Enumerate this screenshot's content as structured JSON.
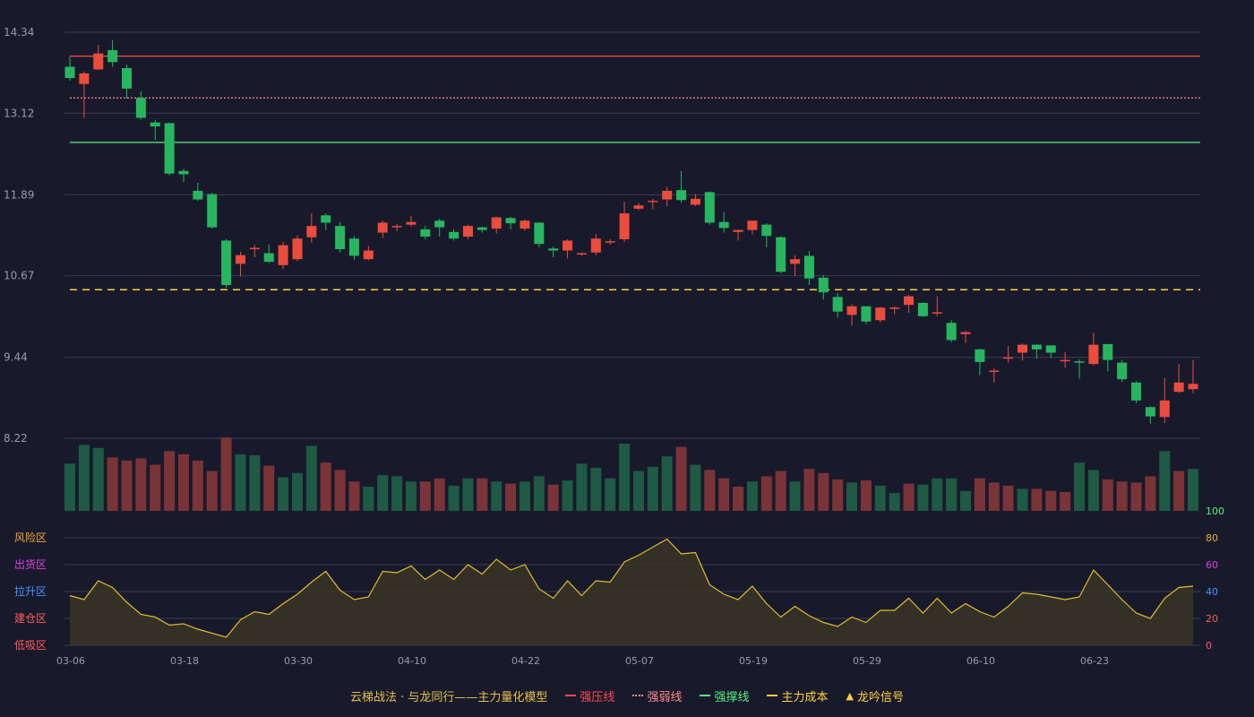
{
  "chart_data": {
    "type": "candlestick",
    "dates_shown": [
      "03-06",
      "03-18",
      "03-30",
      "04-10",
      "04-22",
      "05-07",
      "05-19",
      "05-29",
      "06-10",
      "06-23"
    ],
    "price_axis": {
      "ticks": [
        "14.34",
        "13.12",
        "11.89",
        "10.67",
        "9.44",
        "8.22"
      ],
      "range": [
        8.22,
        14.34
      ]
    },
    "candles": [
      [
        13.82,
        13.65,
        13.97,
        13.61
      ],
      [
        13.56,
        13.72,
        13.75,
        13.05
      ],
      [
        13.78,
        14.02,
        14.15,
        13.77
      ],
      [
        14.07,
        13.89,
        14.22,
        13.82
      ],
      [
        13.8,
        13.49,
        13.85,
        13.34
      ],
      [
        13.35,
        13.05,
        13.45,
        13.02
      ],
      [
        12.98,
        12.92,
        13.02,
        12.72
      ],
      [
        12.97,
        12.21,
        12.98,
        12.18
      ],
      [
        12.25,
        12.2,
        12.28,
        12.08
      ],
      [
        11.95,
        11.82,
        12.07,
        11.8
      ],
      [
        11.9,
        11.4,
        11.92,
        11.38
      ],
      [
        11.2,
        10.53,
        11.22,
        10.49
      ],
      [
        10.85,
        10.98,
        11.03,
        10.66
      ],
      [
        11.08,
        11.09,
        11.13,
        10.95
      ],
      [
        11.01,
        10.88,
        11.14,
        10.86
      ],
      [
        10.83,
        11.13,
        11.18,
        10.77
      ],
      [
        10.92,
        11.23,
        11.28,
        10.89
      ],
      [
        11.25,
        11.42,
        11.61,
        11.17
      ],
      [
        11.58,
        11.47,
        11.61,
        11.36
      ],
      [
        11.42,
        11.07,
        11.48,
        11.02
      ],
      [
        11.23,
        10.97,
        11.27,
        10.91
      ],
      [
        10.92,
        11.05,
        11.12,
        10.9
      ],
      [
        11.32,
        11.47,
        11.5,
        11.24
      ],
      [
        11.4,
        11.42,
        11.45,
        11.34
      ],
      [
        11.44,
        11.48,
        11.57,
        11.41
      ],
      [
        11.37,
        11.26,
        11.42,
        11.22
      ],
      [
        11.5,
        11.4,
        11.53,
        11.26
      ],
      [
        11.33,
        11.23,
        11.37,
        11.2
      ],
      [
        11.26,
        11.42,
        11.44,
        11.22
      ],
      [
        11.4,
        11.36,
        11.41,
        11.32
      ],
      [
        11.38,
        11.55,
        11.56,
        11.31
      ],
      [
        11.54,
        11.46,
        11.56,
        11.37
      ],
      [
        11.38,
        11.5,
        11.52,
        11.35
      ],
      [
        11.47,
        11.15,
        11.48,
        11.1
      ],
      [
        11.08,
        11.05,
        11.11,
        10.95
      ],
      [
        11.05,
        11.2,
        11.22,
        10.93
      ],
      [
        10.99,
        11.01,
        11.02,
        10.97
      ],
      [
        11.02,
        11.23,
        11.3,
        10.98
      ],
      [
        11.17,
        11.19,
        11.22,
        11.14
      ],
      [
        11.22,
        11.61,
        11.78,
        11.18
      ],
      [
        11.68,
        11.73,
        11.77,
        11.66
      ],
      [
        11.79,
        11.8,
        11.83,
        11.67
      ],
      [
        11.82,
        11.95,
        12.01,
        11.72
      ],
      [
        11.96,
        11.81,
        12.25,
        11.77
      ],
      [
        11.74,
        11.83,
        11.9,
        11.72
      ],
      [
        11.93,
        11.47,
        11.94,
        11.44
      ],
      [
        11.48,
        11.39,
        11.63,
        11.32
      ],
      [
        11.33,
        11.36,
        11.36,
        11.2
      ],
      [
        11.36,
        11.5,
        11.5,
        11.29
      ],
      [
        11.44,
        11.27,
        11.46,
        11.1
      ],
      [
        11.25,
        10.73,
        11.27,
        10.71
      ],
      [
        10.85,
        10.92,
        10.98,
        10.67
      ],
      [
        10.97,
        10.63,
        11.04,
        10.53
      ],
      [
        10.64,
        10.42,
        10.68,
        10.31
      ],
      [
        10.35,
        10.13,
        10.41,
        10.04
      ],
      [
        10.08,
        10.21,
        10.24,
        9.92
      ],
      [
        10.21,
        9.98,
        10.21,
        9.94
      ],
      [
        10.0,
        10.19,
        10.2,
        9.97
      ],
      [
        10.18,
        10.19,
        10.21,
        10.09
      ],
      [
        10.23,
        10.36,
        10.38,
        10.11
      ],
      [
        10.26,
        10.06,
        10.27,
        10.05
      ],
      [
        10.11,
        10.12,
        10.36,
        10.06
      ],
      [
        9.96,
        9.7,
        10.0,
        9.67
      ],
      [
        9.79,
        9.82,
        9.84,
        9.66
      ],
      [
        9.56,
        9.37,
        9.57,
        9.17
      ],
      [
        9.23,
        9.24,
        9.27,
        9.06
      ],
      [
        9.42,
        9.44,
        9.61,
        9.36
      ],
      [
        9.51,
        9.63,
        9.65,
        9.39
      ],
      [
        9.63,
        9.56,
        9.64,
        9.42
      ],
      [
        9.62,
        9.51,
        9.62,
        9.43
      ],
      [
        9.38,
        9.4,
        9.52,
        9.28
      ],
      [
        9.38,
        9.37,
        9.41,
        9.12
      ],
      [
        9.34,
        9.63,
        9.81,
        9.32
      ],
      [
        9.64,
        9.4,
        9.64,
        9.23
      ],
      [
        9.36,
        9.11,
        9.4,
        9.07
      ],
      [
        9.06,
        8.79,
        9.08,
        8.75
      ],
      [
        8.69,
        8.55,
        8.7,
        8.44
      ],
      [
        8.54,
        8.79,
        9.13,
        8.45
      ],
      [
        8.92,
        9.06,
        9.34,
        8.9
      ],
      [
        8.96,
        9.04,
        9.4,
        8.9
      ]
    ],
    "volume_bars": [
      {
        "v": 45,
        "d": "down"
      },
      {
        "v": 63,
        "d": "down"
      },
      {
        "v": 60,
        "d": "down"
      },
      {
        "v": 51,
        "d": "up"
      },
      {
        "v": 48,
        "d": "up"
      },
      {
        "v": 50,
        "d": "up"
      },
      {
        "v": 44,
        "d": "up"
      },
      {
        "v": 57,
        "d": "up"
      },
      {
        "v": 54,
        "d": "up"
      },
      {
        "v": 48,
        "d": "up"
      },
      {
        "v": 38,
        "d": "up"
      },
      {
        "v": 70,
        "d": "up"
      },
      {
        "v": 54,
        "d": "down"
      },
      {
        "v": 53,
        "d": "down"
      },
      {
        "v": 43,
        "d": "up"
      },
      {
        "v": 32,
        "d": "down"
      },
      {
        "v": 36,
        "d": "down"
      },
      {
        "v": 62,
        "d": "down"
      },
      {
        "v": 46,
        "d": "up"
      },
      {
        "v": 39,
        "d": "up"
      },
      {
        "v": 28,
        "d": "up"
      },
      {
        "v": 23,
        "d": "down"
      },
      {
        "v": 34,
        "d": "down"
      },
      {
        "v": 33,
        "d": "down"
      },
      {
        "v": 28,
        "d": "down"
      },
      {
        "v": 28,
        "d": "up"
      },
      {
        "v": 31,
        "d": "up"
      },
      {
        "v": 24,
        "d": "down"
      },
      {
        "v": 31,
        "d": "down"
      },
      {
        "v": 31,
        "d": "up"
      },
      {
        "v": 28,
        "d": "down"
      },
      {
        "v": 26,
        "d": "up"
      },
      {
        "v": 28,
        "d": "down"
      },
      {
        "v": 33,
        "d": "down"
      },
      {
        "v": 25,
        "d": "up"
      },
      {
        "v": 29,
        "d": "down"
      },
      {
        "v": 45,
        "d": "down"
      },
      {
        "v": 41,
        "d": "down"
      },
      {
        "v": 31,
        "d": "down"
      },
      {
        "v": 64,
        "d": "down"
      },
      {
        "v": 38,
        "d": "down"
      },
      {
        "v": 42,
        "d": "down"
      },
      {
        "v": 52,
        "d": "down"
      },
      {
        "v": 61,
        "d": "up"
      },
      {
        "v": 44,
        "d": "down"
      },
      {
        "v": 39,
        "d": "up"
      },
      {
        "v": 31,
        "d": "up"
      },
      {
        "v": 23,
        "d": "up"
      },
      {
        "v": 28,
        "d": "down"
      },
      {
        "v": 33,
        "d": "up"
      },
      {
        "v": 38,
        "d": "up"
      },
      {
        "v": 28,
        "d": "down"
      },
      {
        "v": 40,
        "d": "up"
      },
      {
        "v": 36,
        "d": "up"
      },
      {
        "v": 30,
        "d": "up"
      },
      {
        "v": 27,
        "d": "down"
      },
      {
        "v": 29,
        "d": "up"
      },
      {
        "v": 24,
        "d": "down"
      },
      {
        "v": 17,
        "d": "down"
      },
      {
        "v": 26,
        "d": "up"
      },
      {
        "v": 25,
        "d": "down"
      },
      {
        "v": 31,
        "d": "down"
      },
      {
        "v": 31,
        "d": "down"
      },
      {
        "v": 19,
        "d": "down"
      },
      {
        "v": 31,
        "d": "up"
      },
      {
        "v": 27,
        "d": "up"
      },
      {
        "v": 24,
        "d": "up"
      },
      {
        "v": 21,
        "d": "down"
      },
      {
        "v": 21,
        "d": "up"
      },
      {
        "v": 19,
        "d": "up"
      },
      {
        "v": 18,
        "d": "up"
      },
      {
        "v": 46,
        "d": "down"
      },
      {
        "v": 39,
        "d": "down"
      },
      {
        "v": 30,
        "d": "up"
      },
      {
        "v": 28,
        "d": "up"
      },
      {
        "v": 27,
        "d": "up"
      },
      {
        "v": 33,
        "d": "up"
      },
      {
        "v": 57,
        "d": "down"
      },
      {
        "v": 38,
        "d": "up"
      },
      {
        "v": 40,
        "d": "down"
      }
    ],
    "reference_lines": {
      "strong_pressure": 13.98,
      "strong_weak": 13.35,
      "strong_support": 12.68,
      "main_cost": 10.46
    },
    "oscillator": {
      "ticks_right": [
        "100",
        "80",
        "60",
        "40",
        "20",
        "0"
      ],
      "zone_labels": [
        {
          "text": "风险区",
          "color": "#f0a830"
        },
        {
          "text": "出货区",
          "color": "#e040e0"
        },
        {
          "text": "拉升区",
          "color": "#4a90ff"
        },
        {
          "text": "建仓区",
          "color": "#ff5a5a"
        },
        {
          "text": "低吸区",
          "color": "#ff5a5a"
        }
      ],
      "values": [
        37,
        34,
        48,
        43,
        32,
        23,
        21,
        15,
        16,
        12,
        9,
        6,
        19,
        25,
        23,
        31,
        38,
        47,
        55,
        41,
        34,
        36,
        55,
        54,
        59,
        49,
        56,
        49,
        60,
        53,
        64,
        56,
        60,
        42,
        35,
        48,
        37,
        48,
        47,
        62,
        67,
        73,
        79,
        68,
        69,
        45,
        38,
        34,
        44,
        31,
        21,
        29,
        22,
        17,
        14,
        21,
        17,
        26,
        26,
        35,
        24,
        35,
        24,
        31,
        25,
        21,
        29,
        39,
        38,
        36,
        34,
        36,
        56,
        45,
        34,
        24,
        20,
        35,
        43,
        44
      ]
    },
    "legend": {
      "title": "云梯战法 · 与龙同行——主力量化模型",
      "items": [
        {
          "label": "强压线",
          "style": "solid",
          "color": "#ff4a4a"
        },
        {
          "label": "强弱线",
          "style": "dotted",
          "color": "#ff8a8a"
        },
        {
          "label": "强撑线",
          "style": "solid",
          "color": "#5aef7a"
        },
        {
          "label": "主力成本",
          "style": "dashed",
          "color": "#ffd23a"
        },
        {
          "label": "龙吟信号",
          "style": "triangle",
          "color": "#ffd23a"
        }
      ]
    },
    "colors": {
      "background": "#181a2c",
      "up": "#ec4c3c",
      "down": "#27b65f",
      "vol_up": "#7a3437",
      "vol_down": "#1e5a44",
      "grid": "#3a3d52",
      "axis_text": "#9a9aa8",
      "osc_line": "#e0bd2e"
    }
  }
}
